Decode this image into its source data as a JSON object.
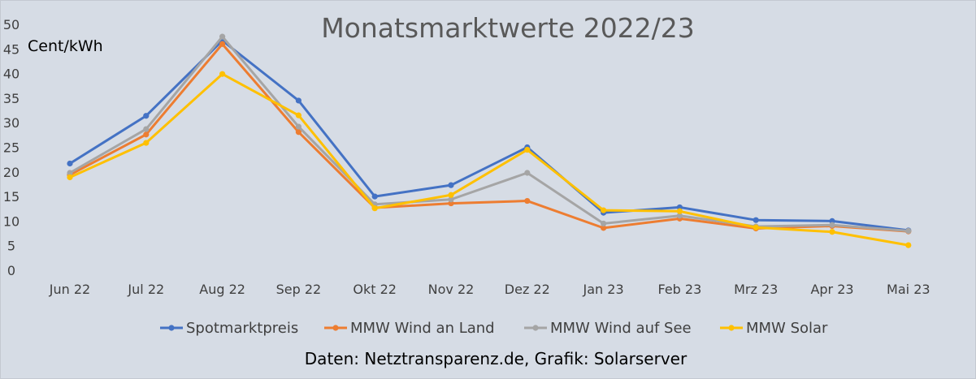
{
  "chart_data": {
    "type": "line",
    "title": "Monatsmarktwerte 2022/23",
    "ylabel": "Cent/kWh",
    "xlabel": "",
    "ylim": [
      0,
      50
    ],
    "yticks": [
      0,
      5,
      10,
      15,
      20,
      25,
      30,
      35,
      40,
      45,
      50
    ],
    "grid": false,
    "legend_position": "bottom",
    "categories": [
      "Jun 22",
      "Jul 22",
      "Aug 22",
      "Sep 22",
      "Okt 22",
      "Nov 22",
      "Dez 22",
      "Jan 23",
      "Feb 23",
      "Mrz 23",
      "Apr 23",
      "Mai 23"
    ],
    "series": [
      {
        "name": "Spotmarktpreis",
        "color": "#4472c4",
        "values": [
          21.7,
          31.4,
          46.7,
          34.5,
          15.0,
          17.3,
          25.0,
          11.7,
          12.8,
          10.2,
          10.0,
          8.1
        ]
      },
      {
        "name": "MMW Wind an Land",
        "color": "#ed7d31",
        "values": [
          19.4,
          27.6,
          46.0,
          28.1,
          12.7,
          13.6,
          14.1,
          8.6,
          10.5,
          8.5,
          9.0,
          7.9
        ]
      },
      {
        "name": "MMW Wind auf See",
        "color": "#a5a5a5",
        "values": [
          19.8,
          28.7,
          47.5,
          29.2,
          13.4,
          14.4,
          19.8,
          9.5,
          11.1,
          8.9,
          9.2,
          8.0
        ]
      },
      {
        "name": "MMW Solar",
        "color": "#ffc000",
        "values": [
          18.9,
          25.9,
          39.9,
          31.5,
          12.6,
          15.3,
          24.5,
          12.2,
          12.0,
          8.7,
          7.8,
          5.1
        ]
      }
    ]
  },
  "credit": "Daten: Netztransparenz.de, Grafik: Solarserver"
}
